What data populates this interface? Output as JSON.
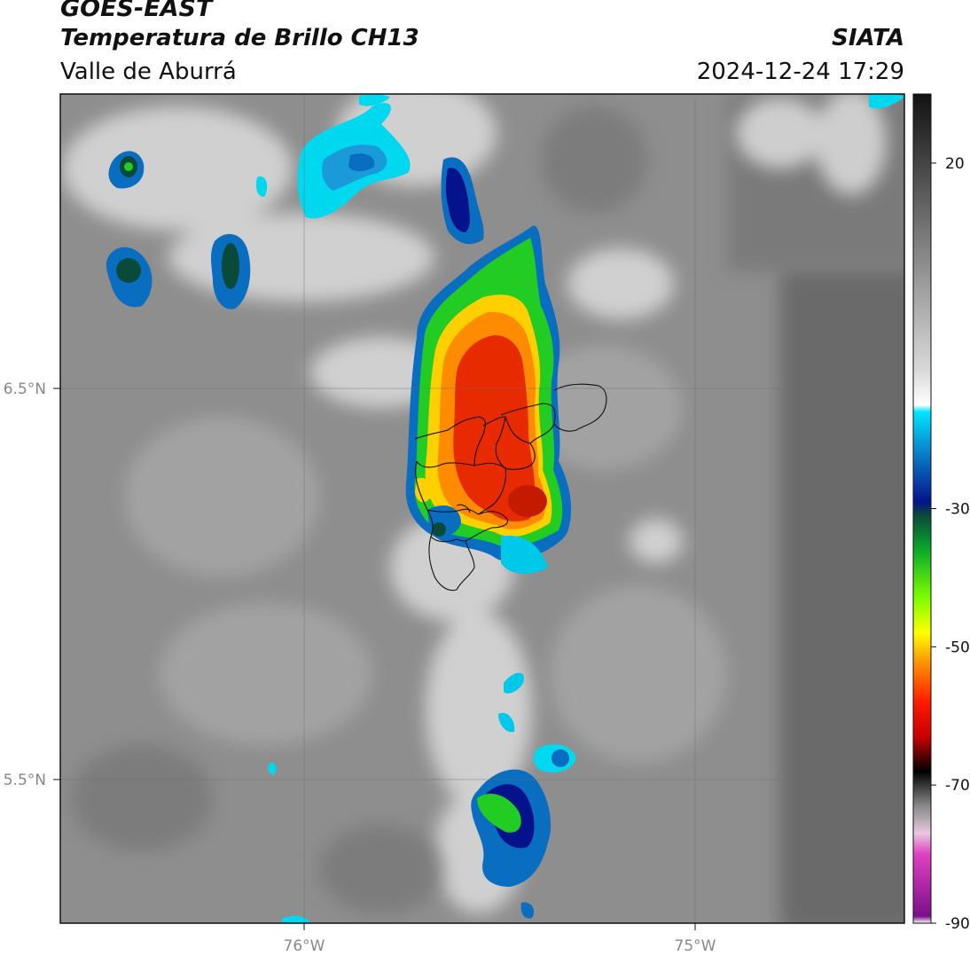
{
  "header": {
    "satellite": "GOES-EAST",
    "product": "Temperatura de Brillo CH13",
    "region": "Valle de Aburrá",
    "organization": "SIATA",
    "timestamp": "2024-12-24 17:29"
  },
  "axes": {
    "lat_labels": [
      {
        "value": 6.5,
        "label": "6.5°N"
      },
      {
        "value": 5.5,
        "label": "5.5°N"
      }
    ],
    "lon_labels": [
      {
        "value": -76.0,
        "label": "76°W"
      },
      {
        "value": -75.0,
        "label": "75°W"
      }
    ],
    "extent": {
      "lon_min": -76.62,
      "lon_max": -74.58,
      "lat_min": 5.15,
      "lat_max": 7.25
    }
  },
  "colorbar": {
    "range": [
      -90,
      30
    ],
    "ticks": [
      {
        "value": 20,
        "label": "20"
      },
      {
        "value": -30,
        "label": "-30"
      },
      {
        "value": -50,
        "label": "-50"
      },
      {
        "value": -70,
        "label": "-70"
      },
      {
        "value": -90,
        "label": "-90"
      }
    ],
    "stops": [
      {
        "t": 30,
        "color": "#111111"
      },
      {
        "t": 10,
        "color": "#777777"
      },
      {
        "t": -10,
        "color": "#d9d9d9"
      },
      {
        "t": -15,
        "color": "#ffffff"
      },
      {
        "t": -16,
        "color": "#00e5ff"
      },
      {
        "t": -22,
        "color": "#0a7ec8"
      },
      {
        "t": -29,
        "color": "#04138c"
      },
      {
        "t": -31,
        "color": "#0a4a3a"
      },
      {
        "t": -36,
        "color": "#0aaa2a"
      },
      {
        "t": -43,
        "color": "#7fff00"
      },
      {
        "t": -48,
        "color": "#ffff00"
      },
      {
        "t": -52,
        "color": "#ff9a00"
      },
      {
        "t": -58,
        "color": "#ff1a00"
      },
      {
        "t": -63,
        "color": "#c80000"
      },
      {
        "t": -68,
        "color": "#000000"
      },
      {
        "t": -73,
        "color": "#888888"
      },
      {
        "t": -77,
        "color": "#e8c8e0"
      },
      {
        "t": -80,
        "color": "#e040c0"
      },
      {
        "t": -89,
        "color": "#7a0f8a"
      },
      {
        "t": -90,
        "color": "#ffffff"
      }
    ]
  },
  "colors": {
    "background_gray": "#8f8f8f",
    "cold_top_red": "#e82a00",
    "cold_top_orange": "#ff8c00",
    "cold_top_green": "#22cc22",
    "cold_top_blue": "#0a6ec0",
    "cold_top_cyan": "#00d8f0",
    "boundary": "#111111"
  }
}
